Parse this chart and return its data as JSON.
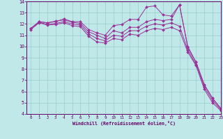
{
  "xlabel": "Windchill (Refroidissement éolien,°C)",
  "bg_color": "#c0e8e8",
  "line_color": "#993399",
  "grid_color": "#99cccc",
  "xlim": [
    -0.5,
    23
  ],
  "ylim": [
    4,
    14
  ],
  "xticks": [
    0,
    1,
    2,
    3,
    4,
    5,
    6,
    7,
    8,
    9,
    10,
    11,
    12,
    13,
    14,
    15,
    16,
    17,
    18,
    19,
    20,
    21,
    22,
    23
  ],
  "yticks": [
    4,
    5,
    6,
    7,
    8,
    9,
    10,
    11,
    12,
    13,
    14
  ],
  "lines": [
    [
      11.6,
      12.2,
      12.1,
      12.2,
      12.45,
      12.2,
      12.2,
      11.5,
      11.2,
      11.0,
      11.85,
      11.95,
      12.4,
      12.4,
      13.5,
      13.6,
      12.8,
      12.7,
      13.7,
      9.9,
      8.6,
      6.6,
      5.4,
      4.5
    ],
    [
      11.6,
      12.2,
      12.1,
      12.25,
      12.35,
      12.15,
      12.05,
      11.3,
      11.0,
      10.7,
      11.4,
      11.2,
      11.7,
      11.7,
      12.2,
      12.4,
      12.3,
      12.4,
      13.7,
      10.0,
      8.6,
      6.6,
      5.4,
      4.5
    ],
    [
      11.6,
      12.15,
      11.95,
      12.05,
      12.2,
      12.0,
      11.9,
      11.1,
      10.7,
      10.5,
      11.0,
      10.9,
      11.4,
      11.4,
      11.8,
      12.0,
      11.9,
      12.1,
      11.8,
      9.7,
      8.4,
      6.4,
      5.2,
      4.4
    ],
    [
      11.5,
      12.1,
      11.9,
      11.95,
      12.1,
      11.85,
      11.75,
      10.9,
      10.4,
      10.3,
      10.7,
      10.6,
      11.1,
      11.0,
      11.4,
      11.6,
      11.5,
      11.7,
      11.4,
      9.5,
      8.3,
      6.2,
      5.0,
      4.3
    ]
  ]
}
